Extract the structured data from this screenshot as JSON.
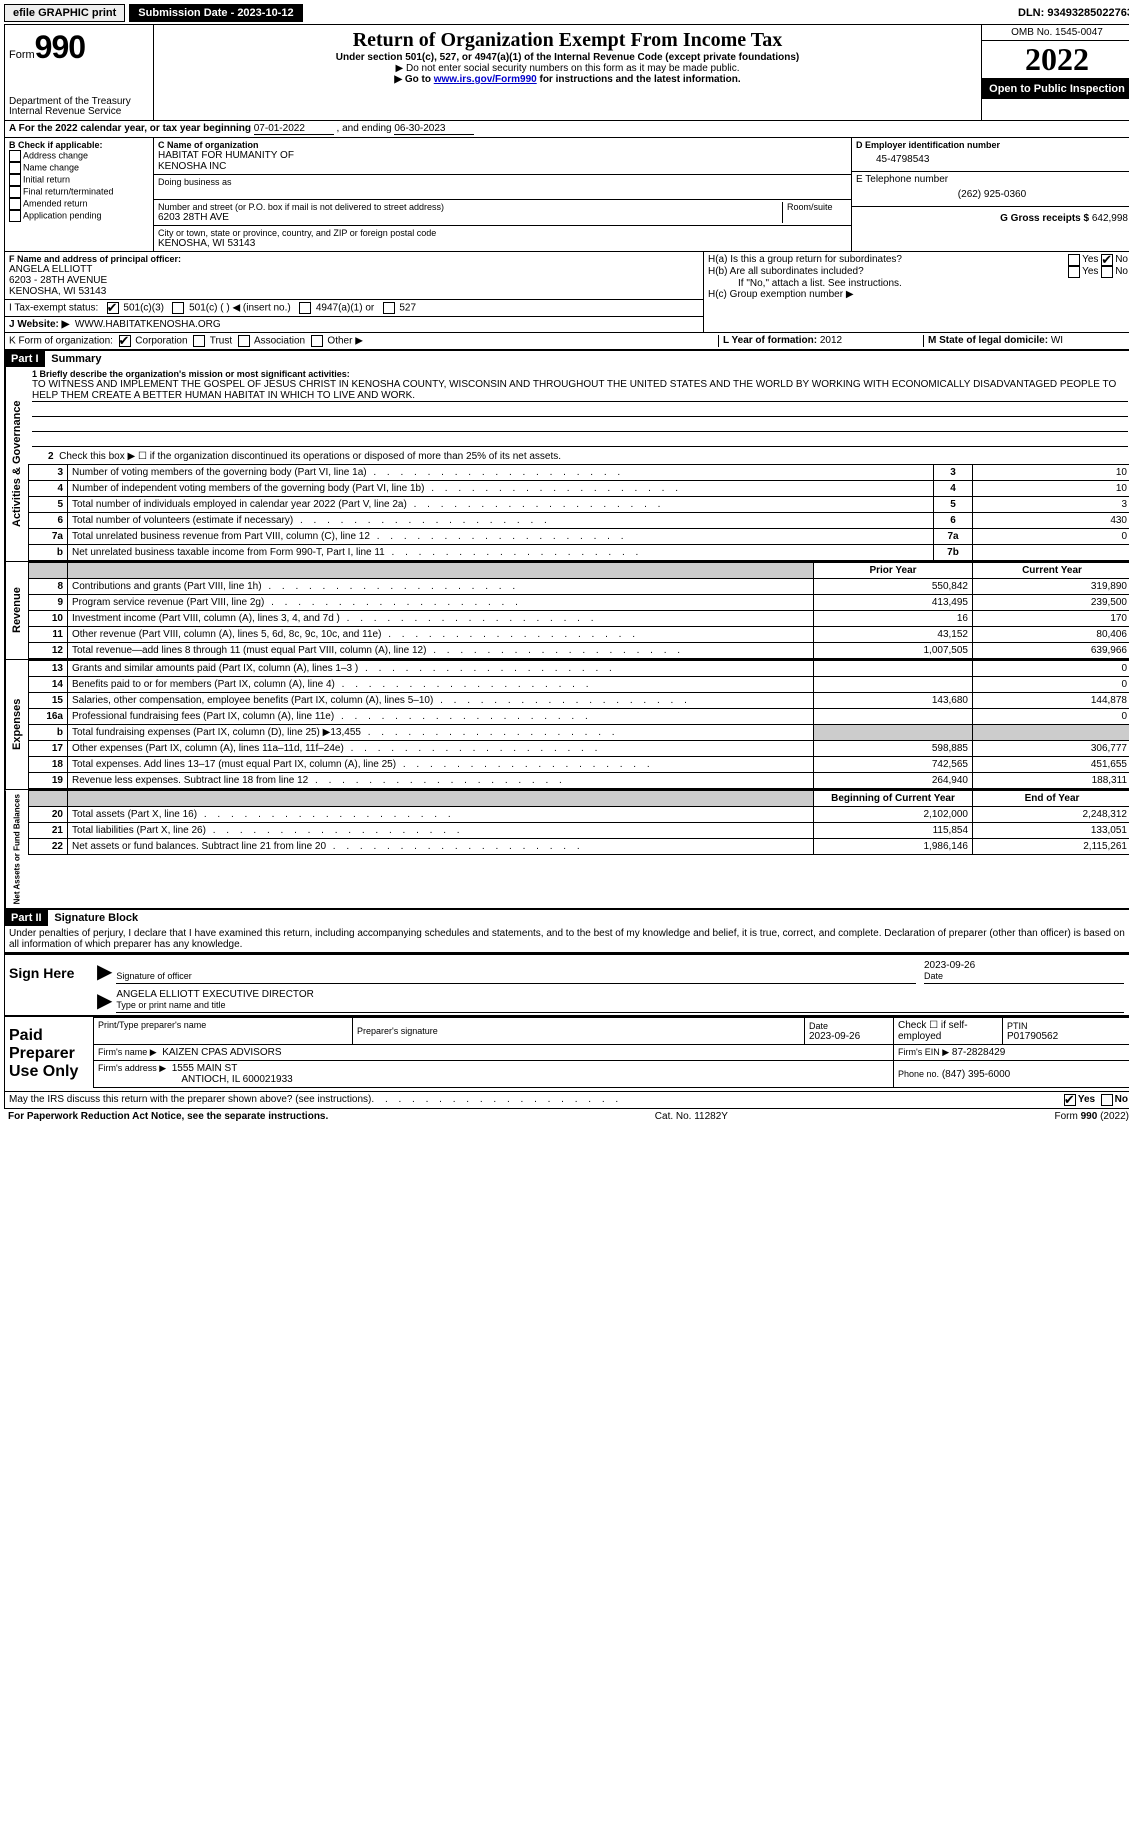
{
  "topbar": {
    "efile": "efile GRAPHIC print",
    "submission_label": "Submission Date - 2023-10-12",
    "dln": "DLN: 93493285022763"
  },
  "header": {
    "form_prefix": "Form",
    "form_number": "990",
    "dept": "Department of the Treasury",
    "irs": "Internal Revenue Service",
    "title": "Return of Organization Exempt From Income Tax",
    "subtitle": "Under section 501(c), 527, or 4947(a)(1) of the Internal Revenue Code (except private foundations)",
    "note1": "▶ Do not enter social security numbers on this form as it may be made public.",
    "note2_pre": "▶ Go to ",
    "note2_link": "www.irs.gov/Form990",
    "note2_post": " for instructions and the latest information.",
    "omb": "OMB No. 1545-0047",
    "year": "2022",
    "open": "Open to Public Inspection"
  },
  "rowA": {
    "text_pre": "A For the 2022 calendar year, or tax year beginning ",
    "begin": "07-01-2022",
    "mid": " , and ending ",
    "end": "06-30-2023"
  },
  "blockB": {
    "title": "B Check if applicable:",
    "addr": "Address change",
    "name": "Name change",
    "initial": "Initial return",
    "final": "Final return/terminated",
    "amended": "Amended return",
    "app": "Application pending"
  },
  "blockC": {
    "label": "C Name of organization",
    "name1": "HABITAT FOR HUMANITY OF",
    "name2": "KENOSHA INC",
    "dba": "Doing business as",
    "street_label": "Number and street (or P.O. box if mail is not delivered to street address)",
    "room": "Room/suite",
    "street": "6203 28TH AVE",
    "city_label": "City or town, state or province, country, and ZIP or foreign postal code",
    "city": "KENOSHA, WI  53143"
  },
  "blockD": {
    "label": "D Employer identification number",
    "ein": "45-4798543"
  },
  "blockE": {
    "label": "E Telephone number",
    "phone": "(262) 925-0360"
  },
  "blockG": {
    "label": "G Gross receipts $",
    "val": "642,998"
  },
  "blockF": {
    "label": "F Name and address of principal officer:",
    "name": "ANGELA ELLIOTT",
    "street": "6203 - 28TH AVENUE",
    "city": "KENOSHA, WI  53143"
  },
  "blockH": {
    "a": "H(a) Is this a group return for subordinates?",
    "b": "H(b) Are all subordinates included?",
    "note": "If \"No,\" attach a list. See instructions.",
    "c": "H(c) Group exemption number ▶",
    "yes": "Yes",
    "no": "No"
  },
  "taxExempt": {
    "label": "I    Tax-exempt status:",
    "c3": "501(c)(3)",
    "c": "501(c) (    ) ◀ (insert no.)",
    "a1": "4947(a)(1) or",
    "527": "527"
  },
  "website": {
    "label": "J     Website: ▶",
    "val": "WWW.HABITATKENOSHA.ORG"
  },
  "rowK": {
    "label": "K Form of organization:",
    "corp": "Corporation",
    "trust": "Trust",
    "assoc": "Association",
    "other": "Other ▶"
  },
  "rowL": {
    "label": "L Year of formation:",
    "val": "2012"
  },
  "rowM": {
    "label": "M State of legal domicile:",
    "val": "WI"
  },
  "part1": {
    "header": "Part I",
    "title": "Summary",
    "line1_label": "1 Briefly describe the organization's mission or most significant activities:",
    "line1_text": "TO WITNESS AND IMPLEMENT THE GOSPEL OF JESUS CHRIST IN KENOSHA COUNTY, WISCONSIN AND THROUGHOUT THE UNITED STATES AND THE WORLD BY WORKING WITH ECONOMICALLY DISADVANTAGED PEOPLE TO HELP THEM CREATE A BETTER HUMAN HABITAT IN WHICH TO LIVE AND WORK.",
    "line2": "Check this box ▶ ☐ if the organization discontinued its operations or disposed of more than 25% of its net assets.",
    "tab_gov": "Activities & Governance",
    "tab_rev": "Revenue",
    "tab_exp": "Expenses",
    "tab_net": "Net Assets or Fund Balances"
  },
  "govLines": [
    {
      "n": "3",
      "d": "Number of voting members of the governing body (Part VI, line 1a)",
      "b": "3",
      "v": "10"
    },
    {
      "n": "4",
      "d": "Number of independent voting members of the governing body (Part VI, line 1b)",
      "b": "4",
      "v": "10"
    },
    {
      "n": "5",
      "d": "Total number of individuals employed in calendar year 2022 (Part V, line 2a)",
      "b": "5",
      "v": "3"
    },
    {
      "n": "6",
      "d": "Total number of volunteers (estimate if necessary)",
      "b": "6",
      "v": "430"
    },
    {
      "n": "7a",
      "d": "Total unrelated business revenue from Part VIII, column (C), line 12",
      "b": "7a",
      "v": "0"
    },
    {
      "n": "b",
      "d": "Net unrelated business taxable income from Form 990-T, Part I, line 11",
      "b": "7b",
      "v": ""
    }
  ],
  "colHeaders": {
    "prior": "Prior Year",
    "current": "Current Year",
    "boy": "Beginning of Current Year",
    "eoy": "End of Year"
  },
  "revLines": [
    {
      "n": "8",
      "d": "Contributions and grants (Part VIII, line 1h)",
      "p": "550,842",
      "c": "319,890"
    },
    {
      "n": "9",
      "d": "Program service revenue (Part VIII, line 2g)",
      "p": "413,495",
      "c": "239,500"
    },
    {
      "n": "10",
      "d": "Investment income (Part VIII, column (A), lines 3, 4, and 7d )",
      "p": "16",
      "c": "170"
    },
    {
      "n": "11",
      "d": "Other revenue (Part VIII, column (A), lines 5, 6d, 8c, 9c, 10c, and 11e)",
      "p": "43,152",
      "c": "80,406"
    },
    {
      "n": "12",
      "d": "Total revenue—add lines 8 through 11 (must equal Part VIII, column (A), line 12)",
      "p": "1,007,505",
      "c": "639,966"
    }
  ],
  "expLines": [
    {
      "n": "13",
      "d": "Grants and similar amounts paid (Part IX, column (A), lines 1–3 )",
      "p": "",
      "c": "0"
    },
    {
      "n": "14",
      "d": "Benefits paid to or for members (Part IX, column (A), line 4)",
      "p": "",
      "c": "0"
    },
    {
      "n": "15",
      "d": "Salaries, other compensation, employee benefits (Part IX, column (A), lines 5–10)",
      "p": "143,680",
      "c": "144,878"
    },
    {
      "n": "16a",
      "d": "Professional fundraising fees (Part IX, column (A), line 11e)",
      "p": "",
      "c": "0"
    },
    {
      "n": "b",
      "d": "Total fundraising expenses (Part IX, column (D), line 25) ▶13,455",
      "p": "grey",
      "c": "grey"
    },
    {
      "n": "17",
      "d": "Other expenses (Part IX, column (A), lines 11a–11d, 11f–24e)",
      "p": "598,885",
      "c": "306,777"
    },
    {
      "n": "18",
      "d": "Total expenses. Add lines 13–17 (must equal Part IX, column (A), line 25)",
      "p": "742,565",
      "c": "451,655"
    },
    {
      "n": "19",
      "d": "Revenue less expenses. Subtract line 18 from line 12",
      "p": "264,940",
      "c": "188,311"
    }
  ],
  "netLines": [
    {
      "n": "20",
      "d": "Total assets (Part X, line 16)",
      "p": "2,102,000",
      "c": "2,248,312"
    },
    {
      "n": "21",
      "d": "Total liabilities (Part X, line 26)",
      "p": "115,854",
      "c": "133,051"
    },
    {
      "n": "22",
      "d": "Net assets or fund balances. Subtract line 21 from line 20",
      "p": "1,986,146",
      "c": "2,115,261"
    }
  ],
  "part2": {
    "header": "Part II",
    "title": "Signature Block",
    "jurat": "Under penalties of perjury, I declare that I have examined this return, including accompanying schedules and statements, and to the best of my knowledge and belief, it is true, correct, and complete. Declaration of preparer (other than officer) is based on all information of which preparer has any knowledge."
  },
  "sign": {
    "here": "Sign Here",
    "sig_officer": "Signature of officer",
    "date": "Date",
    "date_val": "2023-09-26",
    "name": "ANGELA ELLIOTT  EXECUTIVE DIRECTOR",
    "name_label": "Type or print name and title"
  },
  "paid": {
    "title": "Paid Preparer Use Only",
    "print_label": "Print/Type preparer's name",
    "sig_label": "Preparer's signature",
    "date_label": "Date",
    "date_val": "2023-09-26",
    "check_label": "Check ☐ if self-employed",
    "ptin_label": "PTIN",
    "ptin": "P01790562",
    "firm_name_label": "Firm's name    ▶",
    "firm_name": "KAIZEN CPAS ADVISORS",
    "firm_ein_label": "Firm's EIN ▶",
    "firm_ein": "87-2828429",
    "firm_addr_label": "Firm's address ▶",
    "firm_addr1": "1555 MAIN ST",
    "firm_addr2": "ANTIOCH, IL  600021933",
    "phone_label": "Phone no.",
    "phone": "(847) 395-6000"
  },
  "discuss": {
    "q": "May the IRS discuss this return with the preparer shown above? (see instructions)",
    "yes": "Yes",
    "no": "No"
  },
  "footer": {
    "left": "For Paperwork Reduction Act Notice, see the separate instructions.",
    "mid": "Cat. No. 11282Y",
    "right_pre": "Form ",
    "right_num": "990",
    "right_post": " (2022)"
  }
}
